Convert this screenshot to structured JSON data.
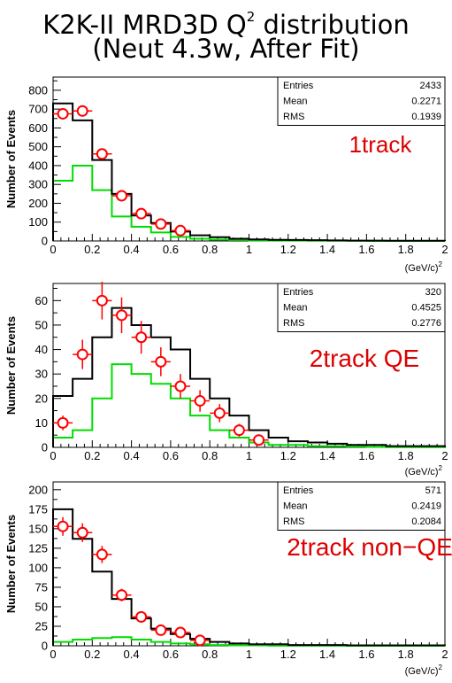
{
  "title": {
    "line1_pre": "K2K-II MRD3D Q",
    "line1_sup": "2",
    "line1_post": " distribution",
    "line2": "(Neut 4.3w, After Fit)"
  },
  "colors": {
    "mc": "#000000",
    "component": "#00dd00",
    "data": "#ff0000",
    "label": "#dd0000"
  },
  "chart_data": [
    {
      "type": "histogram",
      "label": "1track",
      "ylabel": "Number of Events",
      "xunit": "(GeV/c)",
      "xunit_sup": "2",
      "xlim": [
        0,
        2
      ],
      "ylim": [
        0,
        870
      ],
      "xticks": [
        "0",
        "0.2",
        "0.4",
        "0.6",
        "0.8",
        "1",
        "1.2",
        "1.4",
        "1.6",
        "1.8",
        "2"
      ],
      "yticks": [
        0,
        100,
        200,
        300,
        400,
        500,
        600,
        700,
        800
      ],
      "stats": {
        "Entries": "2433",
        "Mean": "0.2271",
        "RMS": "0.1939"
      },
      "bin_edges": [
        0,
        0.1,
        0.2,
        0.3,
        0.4,
        0.5,
        0.6,
        0.7,
        0.8,
        0.9,
        1.0,
        1.1,
        1.2,
        1.3,
        1.4,
        1.5,
        1.6,
        1.7,
        1.8,
        1.9,
        2.0
      ],
      "mc_total": [
        730,
        640,
        430,
        250,
        135,
        95,
        50,
        30,
        20,
        12,
        8,
        6,
        5,
        4,
        3,
        2,
        2,
        1,
        1,
        1
      ],
      "mc_component": [
        320,
        400,
        270,
        130,
        75,
        45,
        22,
        12,
        7,
        5,
        3,
        2,
        2,
        1,
        1,
        1,
        0,
        0,
        0,
        0
      ],
      "data_points": [
        {
          "x": 0.05,
          "y": 675,
          "err": 26
        },
        {
          "x": 0.15,
          "y": 690,
          "err": 26
        },
        {
          "x": 0.25,
          "y": 462,
          "err": 21
        },
        {
          "x": 0.35,
          "y": 240,
          "err": 16
        },
        {
          "x": 0.45,
          "y": 145,
          "err": 12
        },
        {
          "x": 0.55,
          "y": 90,
          "err": 10
        },
        {
          "x": 0.65,
          "y": 55,
          "err": 8
        }
      ]
    },
    {
      "type": "histogram",
      "label": "2track QE",
      "ylabel": "Number of Events",
      "xunit": "(GeV/c)",
      "xunit_sup": "2",
      "xlim": [
        0,
        2
      ],
      "ylim": [
        0,
        67
      ],
      "xticks": [
        "0",
        "0.2",
        "0.4",
        "0.6",
        "0.8",
        "1",
        "1.2",
        "1.4",
        "1.6",
        "1.8",
        "2"
      ],
      "yticks": [
        0,
        10,
        20,
        30,
        40,
        50,
        60
      ],
      "stats": {
        "Entries": "320",
        "Mean": "0.4525",
        "RMS": "0.2776"
      },
      "bin_edges": [
        0,
        0.1,
        0.2,
        0.3,
        0.4,
        0.5,
        0.6,
        0.7,
        0.8,
        0.9,
        1.0,
        1.1,
        1.2,
        1.3,
        1.4,
        1.5,
        1.6,
        1.7,
        1.8,
        1.9,
        2.0
      ],
      "mc_total": [
        21,
        28,
        45,
        57,
        50,
        45,
        40,
        28,
        20,
        13,
        7,
        4,
        2.5,
        2,
        1.5,
        1,
        1,
        0.5,
        0.5,
        0.5
      ],
      "mc_component": [
        4,
        7,
        20,
        34,
        30,
        26,
        20,
        13,
        7,
        4,
        2,
        1,
        1,
        0.5,
        0.5,
        0.3,
        0.2,
        0.1,
        0.1,
        0.1
      ],
      "data_points": [
        {
          "x": 0.05,
          "y": 10,
          "err": 3
        },
        {
          "x": 0.15,
          "y": 38,
          "err": 6
        },
        {
          "x": 0.25,
          "y": 60,
          "err": 7.7
        },
        {
          "x": 0.35,
          "y": 54,
          "err": 7.3
        },
        {
          "x": 0.45,
          "y": 45,
          "err": 6.7
        },
        {
          "x": 0.55,
          "y": 35,
          "err": 5.9
        },
        {
          "x": 0.65,
          "y": 25,
          "err": 5
        },
        {
          "x": 0.75,
          "y": 19,
          "err": 4.4
        },
        {
          "x": 0.85,
          "y": 14,
          "err": 3.7
        },
        {
          "x": 0.95,
          "y": 7,
          "err": 2.6
        },
        {
          "x": 1.05,
          "y": 3,
          "err": 1.7
        }
      ]
    },
    {
      "type": "histogram",
      "label": "2track non−QE",
      "ylabel": "Number of Events",
      "xunit": "(GeV/c)",
      "xunit_sup": "2",
      "xlim": [
        0,
        2
      ],
      "ylim": [
        0,
        210
      ],
      "xticks": [
        "0",
        "0.2",
        "0.4",
        "0.6",
        "0.8",
        "1",
        "1.2",
        "1.4",
        "1.6",
        "1.8",
        "2"
      ],
      "yticks": [
        0,
        25,
        50,
        75,
        100,
        125,
        150,
        175,
        200
      ],
      "stats": {
        "Entries": "571",
        "Mean": "0.2419",
        "RMS": "0.2084"
      },
      "bin_edges": [
        0,
        0.1,
        0.2,
        0.3,
        0.4,
        0.5,
        0.6,
        0.7,
        0.8,
        0.9,
        1.0,
        1.1,
        1.2,
        1.3,
        1.4,
        1.5,
        1.6,
        1.7,
        1.8,
        1.9,
        2.0
      ],
      "mc_total": [
        175,
        137,
        95,
        60,
        35,
        22,
        15,
        9,
        5,
        3,
        2,
        2,
        1,
        1,
        1,
        0.5,
        0.5,
        0.5,
        0.5,
        0.5
      ],
      "mc_component": [
        5,
        8,
        10,
        11,
        8,
        5,
        3,
        2,
        1,
        0.5,
        0.5,
        0.2,
        0.2,
        0.1,
        0.1,
        0,
        0,
        0,
        0,
        0
      ],
      "data_points": [
        {
          "x": 0.05,
          "y": 153,
          "err": 12
        },
        {
          "x": 0.15,
          "y": 145,
          "err": 12
        },
        {
          "x": 0.25,
          "y": 117,
          "err": 11
        },
        {
          "x": 0.35,
          "y": 65,
          "err": 8
        },
        {
          "x": 0.45,
          "y": 37,
          "err": 6
        },
        {
          "x": 0.55,
          "y": 20,
          "err": 4.5
        },
        {
          "x": 0.65,
          "y": 17,
          "err": 4
        },
        {
          "x": 0.75,
          "y": 7,
          "err": 2.6
        }
      ]
    }
  ]
}
